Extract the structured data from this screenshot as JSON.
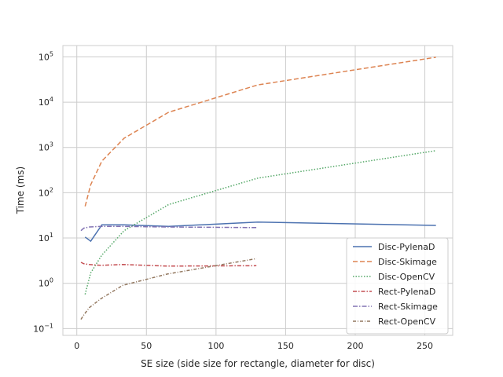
{
  "chart_data": {
    "type": "line",
    "title": "",
    "xlabel": "SE size (side size for rectangle, diameter for disc)",
    "ylabel": "Time (ms)",
    "xlim": [
      -10,
      270
    ],
    "ylim_log10": [
      -1.15,
      5.25
    ],
    "yscale": "log",
    "grid": true,
    "legend_position": "lower-right",
    "x_ticks": [
      {
        "value": 0,
        "label": "0"
      },
      {
        "value": 50,
        "label": "50"
      },
      {
        "value": 100,
        "label": "100"
      },
      {
        "value": 150,
        "label": "150"
      },
      {
        "value": 200,
        "label": "200"
      },
      {
        "value": 250,
        "label": "250"
      }
    ],
    "y_ticks": [
      {
        "exp": -1,
        "base": "10",
        "sup": "−1"
      },
      {
        "exp": 0,
        "base": "10",
        "sup": "0"
      },
      {
        "exp": 1,
        "base": "10",
        "sup": "1"
      },
      {
        "exp": 2,
        "base": "10",
        "sup": "2"
      },
      {
        "exp": 3,
        "base": "10",
        "sup": "3"
      },
      {
        "exp": 4,
        "base": "10",
        "sup": "4"
      },
      {
        "exp": 5,
        "base": "10",
        "sup": "5"
      }
    ],
    "series": [
      {
        "name": "Disc-PylenaD",
        "color": "#4c72b0",
        "dash": "",
        "x": [
          6,
          10,
          18,
          34,
          66,
          130,
          258
        ],
        "y": [
          10.5,
          8.5,
          19.5,
          19.5,
          18,
          22.5,
          19
        ]
      },
      {
        "name": "Disc-Skimage",
        "color": "#dd8452",
        "dash": "6,3",
        "x": [
          6,
          10,
          18,
          34,
          66,
          130,
          258
        ],
        "y": [
          50,
          150,
          500,
          1600,
          6000,
          24000,
          98000
        ]
      },
      {
        "name": "Disc-OpenCV",
        "color": "#55a868",
        "dash": "1.5,2",
        "x": [
          6,
          10,
          18,
          34,
          66,
          130,
          258
        ],
        "y": [
          0.57,
          1.7,
          4.2,
          14.5,
          55,
          210,
          850
        ]
      },
      {
        "name": "Rect-PylenaD",
        "color": "#c44e52",
        "dash": "5,2,1.5,2",
        "x": [
          3,
          5,
          9,
          17,
          33,
          65,
          129
        ],
        "y": [
          2.9,
          2.7,
          2.6,
          2.5,
          2.6,
          2.4,
          2.45
        ]
      },
      {
        "name": "Rect-Skimage",
        "color": "#8172b3",
        "dash": "6,2,1.5,2",
        "x": [
          3,
          5,
          9,
          17,
          33,
          65,
          129
        ],
        "y": [
          14.5,
          16.5,
          17.5,
          18,
          18,
          17.5,
          17
        ]
      },
      {
        "name": "Rect-OpenCV",
        "color": "#937860",
        "dash": "4,2,1,2",
        "x": [
          3,
          5,
          9,
          17,
          33,
          65,
          129
        ],
        "y": [
          0.16,
          0.2,
          0.29,
          0.45,
          0.9,
          1.6,
          3.5
        ]
      }
    ]
  }
}
